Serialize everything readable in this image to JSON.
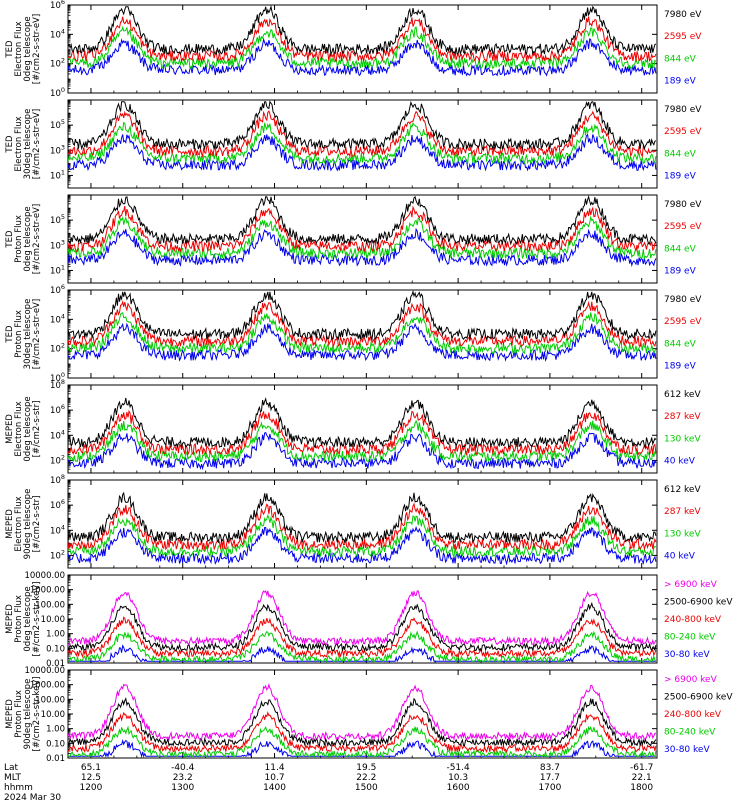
{
  "chart_data": {
    "type": "line",
    "x_footer": {
      "rows": [
        {
          "label": "Lat",
          "values": [
            "65.1",
            "-40.4",
            "11.4",
            "19.5",
            "-51.4",
            "83.7",
            "-61.7"
          ]
        },
        {
          "label": "MLT",
          "values": [
            "12.5",
            "23.2",
            "10.7",
            "22.2",
            "10.3",
            "17.7",
            "22.1"
          ]
        },
        {
          "label": "hhmm",
          "values": [
            "1200",
            "1300",
            "1400",
            "1500",
            "1600",
            "1700",
            "1800"
          ]
        }
      ],
      "date": "2024 Mar 30"
    },
    "panels": [
      {
        "ylabel": [
          "TED",
          "Electron Flux",
          "0deg telescope",
          "[#/cm2-s-str-eV]"
        ],
        "log": true,
        "ylim": [
          1,
          1000000
        ],
        "ticks": [
          {
            "v": 1,
            "t": "10^0"
          },
          {
            "v": 100,
            "t": "10^2"
          },
          {
            "v": 10000,
            "t": "10^4"
          },
          {
            "v": 1000000,
            "t": "10^6"
          }
        ],
        "legend": [
          {
            "label": "7980 eV",
            "color": "#000000"
          },
          {
            "label": "2595 eV",
            "color": "#ee0000"
          },
          {
            "label": "844 eV",
            "color": "#00cc00"
          },
          {
            "label": "189 eV",
            "color": "#0000ee"
          }
        ]
      },
      {
        "ylabel": [
          "TED",
          "Electron Flux",
          "30deg telescope",
          "[#/cm2-s-str-eV]"
        ],
        "log": true,
        "ylim": [
          1,
          10000000
        ],
        "ticks": [
          {
            "v": 10,
            "t": "10^1"
          },
          {
            "v": 1000,
            "t": "10^3"
          },
          {
            "v": 100000,
            "t": "10^5"
          }
        ],
        "legend": [
          {
            "label": "7980 eV",
            "color": "#000000"
          },
          {
            "label": "2595 eV",
            "color": "#ee0000"
          },
          {
            "label": "844 eV",
            "color": "#00cc00"
          },
          {
            "label": "189 eV",
            "color": "#0000ee"
          }
        ]
      },
      {
        "ylabel": [
          "TED",
          "Proton Flux",
          "0deg telescope",
          "[#/cm2-s-str-eV]"
        ],
        "log": true,
        "ylim": [
          1,
          10000000
        ],
        "ticks": [
          {
            "v": 10,
            "t": "10^1"
          },
          {
            "v": 1000,
            "t": "10^3"
          },
          {
            "v": 100000,
            "t": "10^5"
          }
        ],
        "legend": [
          {
            "label": "7980 eV",
            "color": "#000000"
          },
          {
            "label": "2595 eV",
            "color": "#ee0000"
          },
          {
            "label": "844 eV",
            "color": "#00cc00"
          },
          {
            "label": "189 eV",
            "color": "#0000ee"
          }
        ]
      },
      {
        "ylabel": [
          "TED",
          "Proton Flux",
          "30deg telescope",
          "[#/cm2-s-str-eV]"
        ],
        "log": true,
        "ylim": [
          1,
          1000000
        ],
        "ticks": [
          {
            "v": 1,
            "t": "10^0"
          },
          {
            "v": 100,
            "t": "10^2"
          },
          {
            "v": 10000,
            "t": "10^4"
          },
          {
            "v": 1000000,
            "t": "10^6"
          }
        ],
        "legend": [
          {
            "label": "7980 eV",
            "color": "#000000"
          },
          {
            "label": "2595 eV",
            "color": "#ee0000"
          },
          {
            "label": "844 eV",
            "color": "#00cc00"
          },
          {
            "label": "189 eV",
            "color": "#0000ee"
          }
        ]
      },
      {
        "ylabel": [
          "MEPED",
          "Electron Flux",
          "0deg telescope",
          "[#/cm2-s-str]"
        ],
        "log": true,
        "ylim": [
          10,
          100000000
        ],
        "ticks": [
          {
            "v": 100,
            "t": "10^2"
          },
          {
            "v": 10000,
            "t": "10^4"
          },
          {
            "v": 1000000,
            "t": "10^6"
          },
          {
            "v": 100000000,
            "t": "10^8"
          }
        ],
        "legend": [
          {
            "label": "612 keV",
            "color": "#000000"
          },
          {
            "label": "287 keV",
            "color": "#ee0000"
          },
          {
            "label": "130 keV",
            "color": "#00cc00"
          },
          {
            "label": "40 keV",
            "color": "#0000ee"
          }
        ]
      },
      {
        "ylabel": [
          "MEPED",
          "Electron Flux",
          "90deg telescope",
          "[#/cm2-s-str]"
        ],
        "log": true,
        "ylim": [
          10,
          100000000
        ],
        "ticks": [
          {
            "v": 100,
            "t": "10^2"
          },
          {
            "v": 10000,
            "t": "10^4"
          },
          {
            "v": 1000000,
            "t": "10^6"
          },
          {
            "v": 100000000,
            "t": "10^8"
          }
        ],
        "legend": [
          {
            "label": "612 keV",
            "color": "#000000"
          },
          {
            "label": "287 keV",
            "color": "#ee0000"
          },
          {
            "label": "130 keV",
            "color": "#00cc00"
          },
          {
            "label": "40 keV",
            "color": "#0000ee"
          }
        ]
      },
      {
        "ylabel": [
          "MEPED",
          "Proton Flux",
          "0deg telescope",
          "[#/cm2-s-str-keV]"
        ],
        "log": true,
        "ylim": [
          0.01,
          10000
        ],
        "ticks": [
          {
            "v": 0.01,
            "t": "0.01"
          },
          {
            "v": 0.1,
            "t": "0.10"
          },
          {
            "v": 1,
            "t": "1.00"
          },
          {
            "v": 10,
            "t": "10.00"
          },
          {
            "v": 100,
            "t": "100.00"
          },
          {
            "v": 1000,
            "t": "1000.00"
          },
          {
            "v": 10000,
            "t": "10000.00"
          }
        ],
        "legend": [
          {
            "label": "> 6900 keV",
            "color": "#ee00ee"
          },
          {
            "label": "2500-6900 keV",
            "color": "#000000"
          },
          {
            "label": "240-800 keV",
            "color": "#ee0000"
          },
          {
            "label": "80-240 keV",
            "color": "#00cc00"
          },
          {
            "label": "30-80 keV",
            "color": "#0000ee"
          }
        ]
      },
      {
        "ylabel": [
          "MEPED",
          "Proton Flux",
          "90deg telescope",
          "[#/cm2-s-str-keV]"
        ],
        "log": true,
        "ylim": [
          0.01,
          10000
        ],
        "ticks": [
          {
            "v": 0.01,
            "t": "0.01"
          },
          {
            "v": 0.1,
            "t": "0.10"
          },
          {
            "v": 1,
            "t": "1.00"
          },
          {
            "v": 10,
            "t": "10.00"
          },
          {
            "v": 100,
            "t": "100.00"
          },
          {
            "v": 1000,
            "t": "1000.00"
          },
          {
            "v": 10000,
            "t": "10000.00"
          }
        ],
        "legend": [
          {
            "label": "> 6900 keV",
            "color": "#ee00ee"
          },
          {
            "label": "2500-6900 keV",
            "color": "#000000"
          },
          {
            "label": "240-800 keV",
            "color": "#ee0000"
          },
          {
            "label": "80-240 keV",
            "color": "#00cc00"
          },
          {
            "label": "30-80 keV",
            "color": "#0000ee"
          }
        ]
      }
    ]
  }
}
